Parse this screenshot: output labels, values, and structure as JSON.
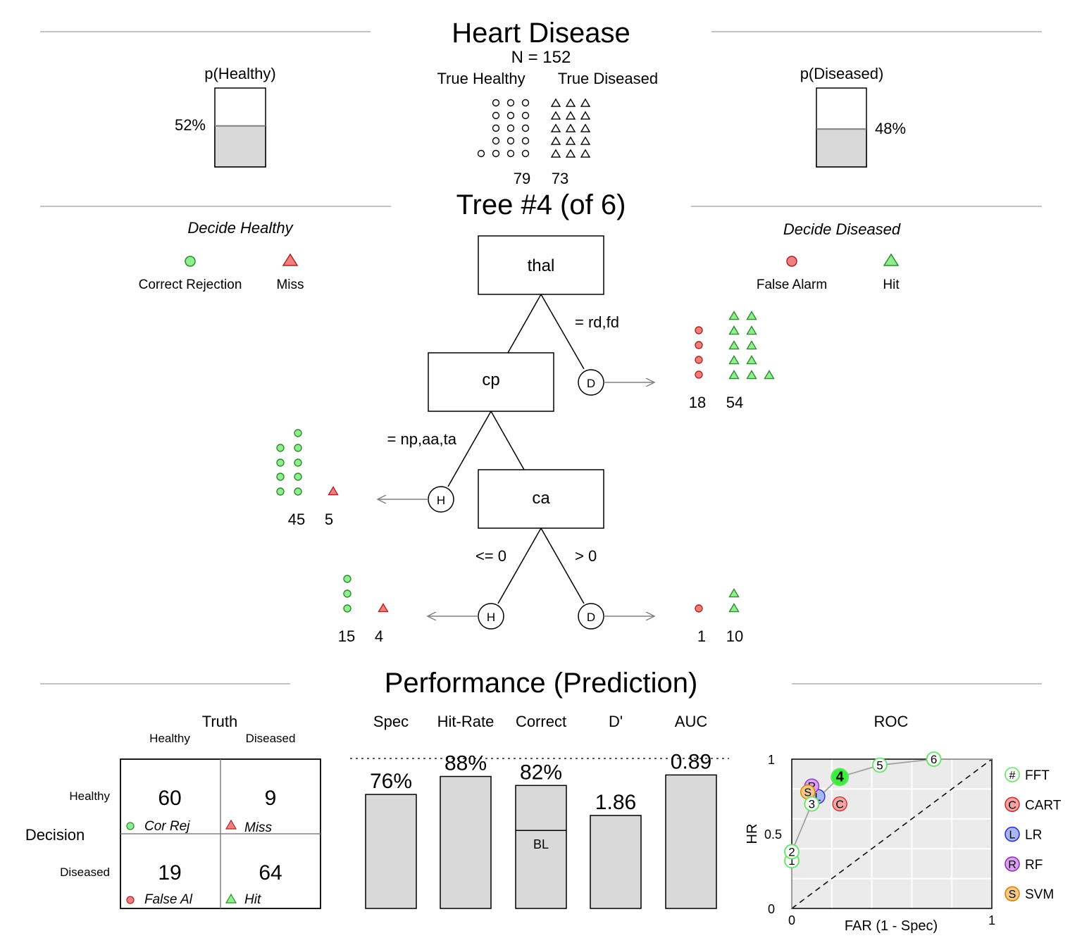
{
  "header": {
    "title": "Heart Disease",
    "n_label": "N = 152"
  },
  "colors": {
    "green": "#90EE90",
    "red": "#F08080",
    "gray": "#D9D9D9",
    "line": "#808080",
    "roc_bg": "#EBEBEB",
    "fft": "#7CFC7C",
    "cart": "#F5A3A3",
    "lr": "#A9B7F5",
    "rf": "#D9A3F0",
    "svm": "#F5C98A"
  },
  "prior": {
    "healthy_label": "p(Healthy)",
    "healthy_pct": "52%",
    "healthy_value": 0.52,
    "diseased_label": "p(Diseased)",
    "diseased_pct": "48%",
    "diseased_value": 0.48,
    "true_healthy_label": "True Healthy",
    "true_diseased_label": "True Diseased",
    "true_healthy_n": "79",
    "true_diseased_n": "73",
    "healthy_icon": "circle-icon",
    "diseased_icon": "triangle-icon"
  },
  "tree": {
    "title": "Tree #4 (of 6)",
    "decide_healthy": "Decide Healthy",
    "decide_diseased": "Decide Diseased",
    "legend": {
      "cr": "Correct Rejection",
      "miss": "Miss",
      "fa": "False Alarm",
      "hit": "Hit"
    },
    "nodes": {
      "n1": "thal",
      "n2": "cp",
      "n3": "ca"
    },
    "edges": {
      "e1": "= rd,fd",
      "e2": "= np,aa,ta",
      "e3": "<= 0",
      "e4": "> 0"
    },
    "leaf_h": "H",
    "leaf_d": "D",
    "exits": {
      "ex1": {
        "left": "18",
        "right": "54"
      },
      "ex2": {
        "left": "45",
        "right": "5"
      },
      "ex3": {
        "left": "15",
        "right": "4"
      },
      "ex4": {
        "left": "1",
        "right": "10"
      }
    }
  },
  "performance": {
    "title": "Performance (Prediction)",
    "truth": "Truth",
    "col_healthy": "Healthy",
    "col_diseased": "Diseased",
    "decision": "Decision",
    "row_healthy": "Healthy",
    "row_diseased": "Diseased",
    "cells": {
      "cr": "60",
      "miss": "9",
      "fa": "19",
      "hit": "64"
    },
    "cell_labels": {
      "cr": "Cor Rej",
      "miss": "Miss",
      "fa": "False Al",
      "hit": "Hit"
    },
    "baseline_label": "BL",
    "roc": {
      "title": "ROC",
      "xlabel": "FAR (1 - Spec)",
      "ylabel": "HR",
      "x0": "0",
      "x1": "1",
      "y0": "0",
      "y05": "0.5",
      "y1": "1",
      "legend": [
        {
          "letter": "#",
          "label": "FFT"
        },
        {
          "letter": "C",
          "label": "CART"
        },
        {
          "letter": "L",
          "label": "LR"
        },
        {
          "letter": "R",
          "label": "RF"
        },
        {
          "letter": "S",
          "label": "SVM"
        }
      ]
    }
  },
  "chart_data": [
    {
      "type": "bar",
      "title": "Performance (Prediction)",
      "categories": [
        "Spec",
        "Hit-Rate",
        "Correct",
        "D'",
        "AUC"
      ],
      "values": [
        0.76,
        0.88,
        0.82,
        1.86,
        0.89
      ],
      "labels": [
        "76%",
        "88%",
        "82%",
        "1.86",
        "0.89"
      ],
      "baseline_correct": 0.52,
      "d_prime_max": 3
    },
    {
      "type": "scatter",
      "title": "ROC",
      "xlabel": "FAR (1 - Spec)",
      "ylabel": "HR",
      "xlim": [
        0,
        1
      ],
      "ylim": [
        0,
        1
      ],
      "grid": true,
      "legend_position": "right",
      "series": [
        {
          "name": "FFT",
          "points": [
            {
              "label": "1",
              "x": 0.0,
              "y": 0.32
            },
            {
              "label": "2",
              "x": 0.0,
              "y": 0.38
            },
            {
              "label": "3",
              "x": 0.1,
              "y": 0.7
            },
            {
              "label": "4",
              "x": 0.24,
              "y": 0.88
            },
            {
              "label": "5",
              "x": 0.44,
              "y": 0.96
            },
            {
              "label": "6",
              "x": 0.71,
              "y": 1.0
            }
          ]
        },
        {
          "name": "CART",
          "points": [
            {
              "label": "C",
              "x": 0.24,
              "y": 0.7
            }
          ]
        },
        {
          "name": "LR",
          "points": [
            {
              "label": "L",
              "x": 0.13,
              "y": 0.75
            }
          ]
        },
        {
          "name": "RF",
          "points": [
            {
              "label": "R",
              "x": 0.1,
              "y": 0.82
            }
          ]
        },
        {
          "name": "SVM",
          "points": [
            {
              "label": "S",
              "x": 0.08,
              "y": 0.78
            }
          ]
        }
      ]
    }
  ]
}
